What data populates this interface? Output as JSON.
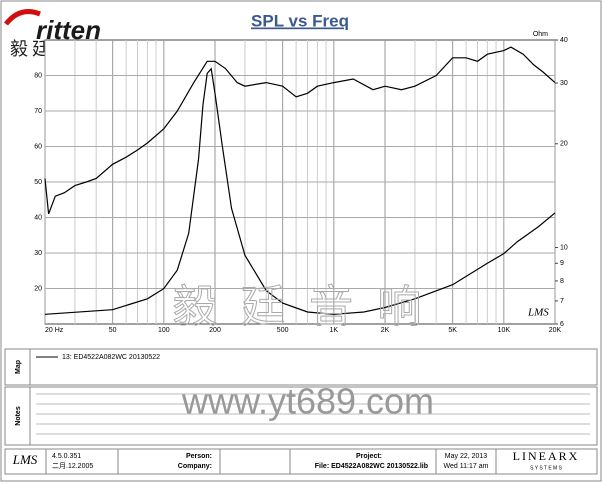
{
  "header": {
    "logo": "ritten",
    "logo_cn": "毅廷音响"
  },
  "chart_data": {
    "type": "line",
    "title": "SPL vs Freq",
    "xscale": "log",
    "y2scale": "log",
    "xlim": [
      20,
      20000
    ],
    "ylim": [
      10,
      90
    ],
    "y2lim": [
      6,
      40
    ],
    "y2label": "Ohm",
    "xticks": [
      {
        "value": 20,
        "label": "20 Hz"
      },
      50,
      100,
      200,
      500,
      {
        "value": 1000,
        "label": "1K"
      },
      {
        "value": 2000,
        "label": "2K"
      },
      {
        "value": 5000,
        "label": "5K"
      },
      {
        "value": 10000,
        "label": "10K"
      },
      {
        "value": 20000,
        "label": "20K"
      }
    ],
    "xgrid": [
      30,
      40,
      60,
      70,
      80,
      90,
      300,
      400,
      600,
      700,
      800,
      900,
      3000,
      4000,
      6000,
      7000,
      8000,
      9000
    ],
    "yticks": [
      20,
      30,
      40,
      50,
      60,
      70,
      80
    ],
    "y2ticks": [
      6,
      7,
      8,
      9,
      10,
      20,
      30,
      40
    ],
    "grid": true,
    "plot_label": "LMS",
    "series": [
      {
        "color": "#000000",
        "x": [
          20,
          21,
          23,
          26,
          30,
          35,
          40,
          50,
          60,
          70,
          80,
          100,
          120,
          150,
          180,
          200,
          230,
          270,
          300,
          400,
          500,
          600,
          700,
          800,
          1000,
          1300,
          1700,
          2000,
          2500,
          3000,
          4000,
          5000,
          6000,
          7000,
          8000,
          10000,
          11000,
          13000,
          15000,
          17000,
          20000
        ],
        "values": [
          51,
          41,
          46,
          47,
          49,
          50,
          51,
          55,
          57,
          59,
          61,
          65,
          70,
          78,
          84,
          84,
          82,
          78,
          77,
          78,
          77,
          74,
          75,
          77,
          78,
          79,
          76,
          77,
          76,
          77,
          80,
          85,
          85,
          84,
          86,
          87,
          88,
          86,
          83,
          81,
          78
        ]
      },
      {
        "color": "#000000",
        "axis": "y2",
        "x": [
          20,
          50,
          80,
          100,
          120,
          140,
          160,
          170,
          180,
          190,
          200,
          220,
          250,
          300,
          400,
          500,
          700,
          1000,
          1500,
          2000,
          3000,
          5000,
          8000,
          10000,
          12000,
          16000,
          20000
        ],
        "values": [
          6.4,
          6.6,
          7.1,
          7.6,
          8.6,
          11,
          18,
          26,
          32,
          33,
          28,
          20,
          13,
          9.5,
          7.5,
          6.9,
          6.5,
          6.4,
          6.5,
          6.7,
          7.1,
          7.8,
          9,
          9.6,
          10.4,
          11.5,
          12.6
        ]
      }
    ]
  },
  "map": {
    "label": "Map",
    "entry": "13: ED4522A082WC  20130522"
  },
  "notes": {
    "label": "Notes"
  },
  "watermark": {
    "cn": "毅 廷 音 响",
    "url": "www.yt689.com"
  },
  "footer": {
    "logo": "LMS",
    "version": "4.5.0.351",
    "build": "二月.12.2005",
    "person": "Person:",
    "company": "Company:",
    "project": "Project:",
    "file": "File: ED4522A082WC  20130522.lib",
    "date": "May 22, 2013",
    "time": "Wed 11:17 am",
    "brand": "LINEARX",
    "brand_sub": "S Y S T E M S"
  }
}
